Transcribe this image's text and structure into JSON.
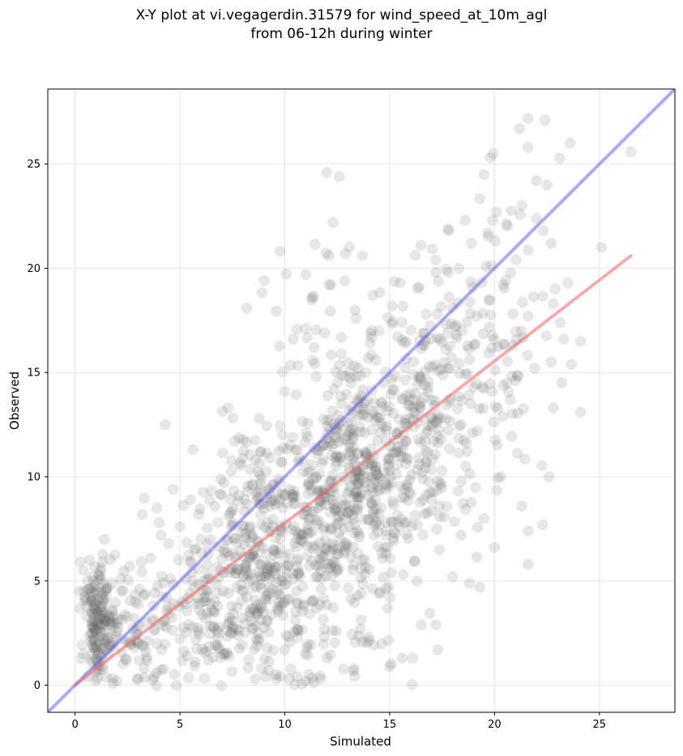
{
  "chart_data": {
    "type": "scatter",
    "title_line1": "X-Y plot at vi.vegagerdin.31579 for wind_speed_at_10m_agl",
    "title_line2": "from 06-12h during winter",
    "xlabel": "Simulated",
    "ylabel": "Observed",
    "xlim": [
      -1.3,
      28.6
    ],
    "ylim": [
      -1.3,
      28.6
    ],
    "xticks": [
      0,
      5,
      10,
      15,
      20,
      25
    ],
    "yticks": [
      0,
      5,
      10,
      15,
      20,
      25
    ],
    "grid": true,
    "point_color": "#555555",
    "identity_line": {
      "color": "#5555ee",
      "x": [
        -1.3,
        28.6
      ],
      "y": [
        -1.3,
        28.6
      ]
    },
    "regression_line": {
      "color": "#ee6666",
      "x": [
        0,
        26.5
      ],
      "y": [
        0,
        20.6
      ]
    },
    "scatter_clusters": [
      {
        "center": [
          1.1,
          3.0
        ],
        "spread": [
          0.35,
          1.4
        ],
        "count": 150
      },
      {
        "center": [
          3.0,
          2.2
        ],
        "spread": [
          1.0,
          1.5
        ],
        "count": 80
      },
      {
        "center": [
          6.5,
          3.5
        ],
        "spread": [
          1.5,
          2.2
        ],
        "count": 160
      },
      {
        "center": [
          9.0,
          6.0
        ],
        "spread": [
          1.7,
          2.4
        ],
        "count": 260
      },
      {
        "center": [
          11.5,
          8.0
        ],
        "spread": [
          1.8,
          2.5
        ],
        "count": 260
      },
      {
        "center": [
          14.0,
          11.0
        ],
        "spread": [
          1.6,
          2.7
        ],
        "count": 260
      },
      {
        "center": [
          16.5,
          12.0
        ],
        "spread": [
          1.6,
          3.0
        ],
        "count": 180
      },
      {
        "center": [
          19.5,
          16.0
        ],
        "spread": [
          1.8,
          3.4
        ],
        "count": 130
      },
      {
        "center": [
          12.0,
          2.0
        ],
        "spread": [
          2.2,
          1.2
        ],
        "count": 45
      },
      {
        "center": [
          11.5,
          17.5
        ],
        "spread": [
          1.5,
          2.2
        ],
        "count": 30
      }
    ],
    "scatter_points": [
      [
        4.3,
        12.5
      ],
      [
        12.0,
        24.6
      ],
      [
        12.6,
        24.4
      ],
      [
        12.3,
        22.2
      ],
      [
        11.0,
        19.7
      ],
      [
        10.0,
        14.1
      ],
      [
        7.3,
        13.3
      ],
      [
        7.6,
        11.7
      ],
      [
        21.6,
        27.2
      ],
      [
        22.4,
        27.1
      ],
      [
        23.6,
        26.0
      ],
      [
        26.5,
        25.6
      ],
      [
        21.2,
        26.7
      ],
      [
        21.6,
        25.8
      ],
      [
        25.1,
        21.0
      ],
      [
        24.1,
        16.5
      ],
      [
        24.1,
        13.1
      ],
      [
        21.6,
        5.8
      ],
      [
        20.0,
        6.6
      ],
      [
        19.3,
        4.7
      ],
      [
        22.3,
        7.7
      ],
      [
        21.6,
        7.4
      ],
      [
        17.3,
        1.7
      ],
      [
        16.1,
        1.3
      ],
      [
        15.0,
        0.9
      ],
      [
        15.6,
        1.3
      ],
      [
        19.8,
        25.3
      ],
      [
        19.5,
        24.5
      ],
      [
        19.9,
        22.3
      ],
      [
        12.1,
        20.6
      ],
      [
        12.9,
        20.7
      ],
      [
        13.7,
        20.6
      ],
      [
        14.2,
        18.7
      ],
      [
        22.0,
        24.2
      ],
      [
        20.1,
        22.7
      ],
      [
        22.5,
        24.0
      ],
      [
        18.6,
        22.3
      ],
      [
        17.8,
        19.8
      ],
      [
        19.6,
        20.1
      ],
      [
        21.3,
        23.0
      ],
      [
        16.5,
        21.1
      ],
      [
        22.0,
        22.4
      ],
      [
        23.5,
        19.3
      ],
      [
        22.7,
        21.2
      ],
      [
        22.9,
        19.0
      ],
      [
        20.9,
        16.3
      ],
      [
        21.9,
        15.2
      ],
      [
        23.3,
        16.6
      ],
      [
        22.8,
        13.3
      ],
      [
        23.2,
        14.5
      ],
      [
        22.7,
        15.5
      ],
      [
        21.6,
        17.7
      ],
      [
        20.3,
        10.0
      ],
      [
        20.4,
        12.9
      ],
      [
        21.3,
        8.6
      ],
      [
        22.6,
        10.0
      ],
      [
        19.5,
        8.0
      ],
      [
        18.4,
        7.2
      ],
      [
        16.3,
        5.0
      ],
      [
        17.2,
        2.9
      ],
      [
        16.5,
        2.9
      ],
      [
        18.0,
        5.2
      ],
      [
        13.3,
        0.8
      ],
      [
        14.0,
        2.3
      ],
      [
        13.6,
        2.7
      ],
      [
        5.5,
        8.9
      ],
      [
        5.9,
        8.2
      ],
      [
        3.2,
        8.2
      ],
      [
        3.9,
        8.5
      ],
      [
        4.1,
        7.2
      ],
      [
        3.6,
        6.1
      ],
      [
        2.6,
        5.7
      ],
      [
        1.3,
        5.9
      ],
      [
        0.7,
        6.0
      ],
      [
        0.4,
        5.5
      ],
      [
        0.2,
        4.5
      ],
      [
        0.4,
        1.5
      ],
      [
        0.6,
        0.4
      ],
      [
        2.0,
        0.2
      ],
      [
        3.0,
        0.3
      ],
      [
        8.6,
        0.3
      ],
      [
        9.1,
        0.4
      ],
      [
        9.6,
        0.3
      ],
      [
        10.2,
        0.3
      ],
      [
        11.0,
        0.2
      ],
      [
        11.7,
        0.3
      ],
      [
        7.8,
        9.1
      ],
      [
        8.6,
        10.8
      ],
      [
        9.3,
        10.9
      ],
      [
        9.9,
        12.0
      ],
      [
        10.6,
        11.3
      ],
      [
        11.5,
        14.8
      ],
      [
        10.4,
        16.6
      ],
      [
        11.4,
        16.2
      ],
      [
        11.9,
        16.9
      ],
      [
        12.2,
        19.2
      ],
      [
        11.3,
        18.6
      ],
      [
        12.7,
        16.7
      ],
      [
        13.4,
        17.6
      ],
      [
        14.5,
        17.0
      ],
      [
        15.5,
        19.3
      ],
      [
        16.4,
        19.1
      ],
      [
        17.2,
        20.4
      ],
      [
        18.3,
        20.0
      ],
      [
        18.9,
        21.2
      ]
    ]
  }
}
